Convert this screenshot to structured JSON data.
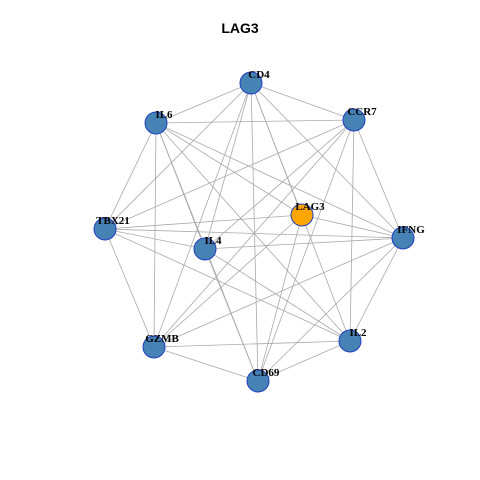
{
  "title": "LAG3",
  "colors": {
    "node": "#4682b4",
    "highlight": "#ffa500",
    "node_border": "#1f3fbf",
    "edge": "#a9a9a9"
  },
  "nodes": [
    {
      "id": "CD4",
      "label": "CD4",
      "highlight": false
    },
    {
      "id": "CCR7",
      "label": "CCR7",
      "highlight": false
    },
    {
      "id": "IL6",
      "label": "IL6",
      "highlight": false
    },
    {
      "id": "LAG3",
      "label": "LAG3",
      "highlight": true
    },
    {
      "id": "TBX21",
      "label": "TBX21",
      "highlight": false
    },
    {
      "id": "IL4",
      "label": "IL4",
      "highlight": false
    },
    {
      "id": "IFNG",
      "label": "IFNG",
      "highlight": false
    },
    {
      "id": "GZMB",
      "label": "GZMB",
      "highlight": false
    },
    {
      "id": "IL2",
      "label": "IL2",
      "highlight": false
    },
    {
      "id": "CD69",
      "label": "CD69",
      "highlight": false
    }
  ],
  "edges": [
    [
      "CD4",
      "CCR7"
    ],
    [
      "CD4",
      "IL6"
    ],
    [
      "CD4",
      "LAG3"
    ],
    [
      "CD4",
      "TBX21"
    ],
    [
      "CD4",
      "IL4"
    ],
    [
      "CD4",
      "IFNG"
    ],
    [
      "CD4",
      "GZMB"
    ],
    [
      "CD4",
      "IL2"
    ],
    [
      "CD4",
      "CD69"
    ],
    [
      "IL6",
      "CCR7"
    ],
    [
      "IL6",
      "TBX21"
    ],
    [
      "IL6",
      "IL4"
    ],
    [
      "IL6",
      "IFNG"
    ],
    [
      "IL6",
      "GZMB"
    ],
    [
      "IL6",
      "IL2"
    ],
    [
      "IL6",
      "CD69"
    ],
    [
      "IL6",
      "LAG3"
    ],
    [
      "CCR7",
      "TBX21"
    ],
    [
      "CCR7",
      "IL4"
    ],
    [
      "CCR7",
      "IFNG"
    ],
    [
      "CCR7",
      "GZMB"
    ],
    [
      "CCR7",
      "IL2"
    ],
    [
      "CCR7",
      "CD69"
    ],
    [
      "LAG3",
      "TBX21"
    ],
    [
      "LAG3",
      "IFNG"
    ],
    [
      "LAG3",
      "GZMB"
    ],
    [
      "LAG3",
      "CD69"
    ],
    [
      "TBX21",
      "IL4"
    ],
    [
      "TBX21",
      "IFNG"
    ],
    [
      "TBX21",
      "GZMB"
    ],
    [
      "TBX21",
      "IL2"
    ],
    [
      "IL4",
      "IFNG"
    ],
    [
      "IL4",
      "IL2"
    ],
    [
      "IL4",
      "CD69"
    ],
    [
      "IFNG",
      "GZMB"
    ],
    [
      "IFNG",
      "IL2"
    ],
    [
      "IFNG",
      "CD69"
    ],
    [
      "GZMB",
      "IL2"
    ],
    [
      "GZMB",
      "CD69"
    ],
    [
      "IL2",
      "CD69"
    ]
  ]
}
